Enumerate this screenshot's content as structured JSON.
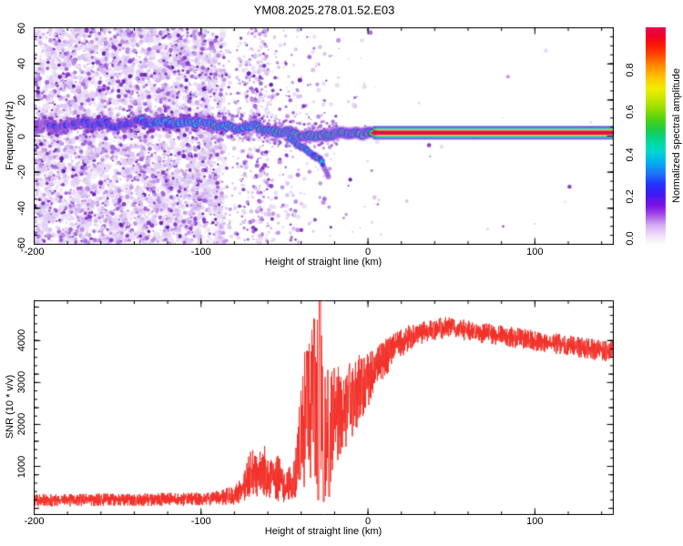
{
  "seed": 20252781,
  "title": "YM08.2025.278.01.52.E03",
  "chart_data": [
    {
      "type": "heatmap",
      "name": "doppler-spectrogram",
      "title": "YM08.2025.278.01.52.E03",
      "xlabel": "Height of straight line (km)",
      "ylabel": "Frequency (Hz)",
      "xlim": [
        -200,
        147
      ],
      "ylim": [
        -60,
        60
      ],
      "x_ticks": [
        {
          "v": -200,
          "l": "-200"
        },
        {
          "v": -100,
          "l": "-100"
        },
        {
          "v": 0,
          "l": "0"
        },
        {
          "v": 100,
          "l": "100"
        }
      ],
      "x_minor_step": 20,
      "y_ticks": [
        {
          "v": 60,
          "l": "60"
        },
        {
          "v": 40,
          "l": "40"
        },
        {
          "v": 20,
          "l": "20"
        },
        {
          "v": 0,
          "l": "0"
        },
        {
          "v": -20,
          "l": "-20"
        },
        {
          "v": -40,
          "l": "-40"
        },
        {
          "v": -60,
          "l": "-60"
        }
      ],
      "y_minor_step": 5,
      "colorbar": {
        "label": "Normalized spectral amplitude",
        "range": [
          0,
          1
        ],
        "ticks": [
          {
            "v": 0.0,
            "l": "0.0"
          },
          {
            "v": 0.2,
            "l": "0.2"
          },
          {
            "v": 0.4,
            "l": "0.4"
          },
          {
            "v": 0.6,
            "l": "0.6"
          },
          {
            "v": 0.8,
            "l": "0.8"
          }
        ],
        "gradient_stops": [
          [
            0.0,
            "#ffffff"
          ],
          [
            0.04,
            "#f0e2fa"
          ],
          [
            0.09,
            "#d4aef2"
          ],
          [
            0.14,
            "#a249e8"
          ],
          [
            0.18,
            "#7d12e4"
          ],
          [
            0.23,
            "#4319f2"
          ],
          [
            0.28,
            "#2136fb"
          ],
          [
            0.33,
            "#1e78f8"
          ],
          [
            0.38,
            "#00b0f0"
          ],
          [
            0.43,
            "#00d8d0"
          ],
          [
            0.48,
            "#00d894"
          ],
          [
            0.53,
            "#1ecb4a"
          ],
          [
            0.58,
            "#52d312"
          ],
          [
            0.63,
            "#9ade00"
          ],
          [
            0.68,
            "#cfe800"
          ],
          [
            0.72,
            "#f2ee00"
          ],
          [
            0.77,
            "#ffc400"
          ],
          [
            0.82,
            "#ff9000"
          ],
          [
            0.86,
            "#ff5a00"
          ],
          [
            0.91,
            "#fb2000"
          ],
          [
            0.95,
            "#f30420"
          ],
          [
            1.0,
            "#e7004e"
          ]
        ]
      },
      "noise_regions": [
        {
          "x0": -200,
          "x1": -86,
          "count": 3200,
          "dense": true
        },
        {
          "x0": -86,
          "x1": -74,
          "count": 120,
          "dense": false
        },
        {
          "x0": -74,
          "x1": -59,
          "count": 330,
          "dense": false
        },
        {
          "x0": -59,
          "x1": -42,
          "count": 140,
          "dense": false
        },
        {
          "x0": -42,
          "x1": -22,
          "count": 85,
          "dense": false
        },
        {
          "x0": -22,
          "x1": 8,
          "count": 40,
          "dense": false
        },
        {
          "x0": 8,
          "x1": 147,
          "count": 16,
          "dense": false
        }
      ],
      "speckle_palette": [
        "#e4d2f6",
        "#d2b4f0",
        "#b98ae6",
        "#9b5cd8",
        "#7b2ec8",
        "#5c14aa"
      ],
      "speckle_weights": [
        0.3,
        0.25,
        0.2,
        0.12,
        0.09,
        0.04
      ],
      "trace": [
        [
          -200,
          5,
          0.2
        ],
        [
          -193,
          7,
          0.22
        ],
        [
          -186,
          4,
          0.25
        ],
        [
          -179,
          6,
          0.28
        ],
        [
          -172,
          8,
          0.3
        ],
        [
          -165,
          6,
          0.33
        ],
        [
          -158,
          8,
          0.38
        ],
        [
          -151,
          5,
          0.3
        ],
        [
          -144,
          7,
          0.36
        ],
        [
          -137,
          9,
          0.4
        ],
        [
          -130,
          7,
          0.42
        ],
        [
          -123,
          8,
          0.46
        ],
        [
          -116,
          6,
          0.5
        ],
        [
          -110,
          8,
          0.52
        ],
        [
          -104,
          7,
          0.5
        ],
        [
          -98,
          8,
          0.48
        ],
        [
          -93,
          6,
          0.52
        ],
        [
          -88,
          5,
          0.56
        ],
        [
          -83,
          6,
          0.52
        ],
        [
          -78,
          4,
          0.58
        ],
        [
          -73,
          5,
          0.62
        ],
        [
          -68,
          6,
          0.6
        ],
        [
          -63,
          4,
          0.66
        ],
        [
          -58,
          3,
          0.62
        ],
        [
          -53,
          2,
          0.68
        ],
        [
          -48,
          2,
          0.72
        ],
        [
          -44,
          1,
          0.7
        ],
        [
          -40,
          0,
          0.76
        ],
        [
          -36,
          1,
          0.8
        ],
        [
          -32,
          0,
          0.85
        ],
        [
          -28,
          1,
          0.9
        ],
        [
          -24,
          0,
          0.88
        ],
        [
          -20,
          1,
          0.92
        ],
        [
          -16,
          2,
          0.9
        ],
        [
          -12,
          1,
          0.96
        ],
        [
          -8,
          2,
          0.93
        ],
        [
          -4,
          1,
          1.0
        ],
        [
          0,
          2,
          0.97
        ],
        [
          3,
          1.8,
          1.0
        ]
      ],
      "branch": [
        [
          -47,
          -1,
          0.5
        ],
        [
          -44,
          -3,
          0.55
        ],
        [
          -41,
          -5,
          0.6
        ],
        [
          -38,
          -7,
          0.55
        ],
        [
          -35,
          -9,
          0.5
        ],
        [
          -32,
          -11,
          0.45
        ],
        [
          -30,
          -12,
          0.55
        ],
        [
          -28,
          -14,
          0.38
        ]
      ],
      "tail_dots": [
        [
          -27,
          -16,
          0.3
        ],
        [
          -26,
          -18,
          0.26
        ],
        [
          -25,
          -19.5,
          0.24
        ],
        [
          -24.3,
          -21,
          0.22
        ],
        [
          -23.8,
          -22.5,
          0.2
        ]
      ],
      "carrier": {
        "x_start": 3,
        "x_end": 147,
        "hz_center": 1.8,
        "layers": [
          [
            "#c08ae8",
            0.9
          ],
          [
            "#2a30ec",
            1.3
          ],
          [
            "#00b4d8",
            0.9
          ],
          [
            "#1cc04a",
            1.2
          ],
          [
            "#dce800",
            0.9
          ],
          [
            "#e60a4e",
            5.0
          ],
          [
            "#dce800",
            0.9
          ],
          [
            "#1cc04a",
            1.2
          ],
          [
            "#00b4d8",
            0.9
          ],
          [
            "#2a30ec",
            1.3
          ],
          [
            "#c08ae8",
            0.9
          ]
        ]
      }
    },
    {
      "type": "line",
      "name": "snr-profile",
      "xlabel": "Height of straight line (km)",
      "ylabel": "SNR (10 * v/v)",
      "line_color": "#f23028",
      "xlim": [
        -200,
        147
      ],
      "ylim": [
        -150,
        4950
      ],
      "x_ticks": [
        {
          "v": -200,
          "l": "-200"
        },
        {
          "v": -100,
          "l": "-100"
        },
        {
          "v": 0,
          "l": "0"
        },
        {
          "v": 100,
          "l": "100"
        }
      ],
      "x_minor_step": 20,
      "y_ticks": [
        {
          "v": 1000,
          "l": "1000"
        },
        {
          "v": 2000,
          "l": "2000"
        },
        {
          "v": 3000,
          "l": "3000"
        },
        {
          "v": 4000,
          "l": "4000"
        }
      ],
      "y_minor_step": 200,
      "envelope": [
        [
          -200,
          190,
          150
        ],
        [
          -160,
          200,
          150
        ],
        [
          -130,
          210,
          155
        ],
        [
          -110,
          215,
          160
        ],
        [
          -100,
          225,
          165
        ],
        [
          -92,
          240,
          170
        ],
        [
          -86,
          280,
          200
        ],
        [
          -80,
          300,
          230
        ],
        [
          -75,
          480,
          330
        ],
        [
          -70,
          850,
          560
        ],
        [
          -66,
          780,
          580
        ],
        [
          -62,
          900,
          620
        ],
        [
          -58,
          680,
          500
        ],
        [
          -54,
          740,
          580
        ],
        [
          -50,
          480,
          340
        ],
        [
          -46,
          620,
          420
        ],
        [
          -43,
          880,
          620
        ],
        [
          -40,
          1700,
          1350
        ],
        [
          -37,
          2400,
          1850
        ],
        [
          -34,
          2500,
          1950
        ],
        [
          -31,
          2650,
          2080
        ],
        [
          -28,
          2280,
          2000
        ],
        [
          -25,
          1900,
          1600
        ],
        [
          -22,
          1980,
          1400
        ],
        [
          -19,
          2080,
          1300
        ],
        [
          -16,
          2260,
          1120
        ],
        [
          -13,
          2420,
          1000
        ],
        [
          -10,
          2580,
          950
        ],
        [
          -7,
          2700,
          900
        ],
        [
          -4,
          2880,
          820
        ],
        [
          -1,
          3020,
          720
        ],
        [
          2,
          3180,
          620
        ],
        [
          6,
          3380,
          520
        ],
        [
          10,
          3580,
          460
        ],
        [
          14,
          3740,
          410
        ],
        [
          18,
          3900,
          360
        ],
        [
          24,
          4060,
          310
        ],
        [
          32,
          4200,
          280
        ],
        [
          42,
          4300,
          270
        ],
        [
          52,
          4290,
          260
        ],
        [
          62,
          4230,
          255
        ],
        [
          75,
          4150,
          250
        ],
        [
          90,
          4060,
          250
        ],
        [
          105,
          3960,
          250
        ],
        [
          120,
          3880,
          250
        ],
        [
          135,
          3790,
          250
        ],
        [
          147,
          3730,
          250
        ]
      ],
      "spikes": [
        [
          -36.6,
          3750
        ],
        [
          -32.2,
          4520
        ],
        [
          -28.8,
          4940
        ]
      ],
      "dips": [
        [
          -29.8,
          200
        ],
        [
          -26.6,
          160
        ],
        [
          -23.2,
          280
        ]
      ]
    }
  ]
}
